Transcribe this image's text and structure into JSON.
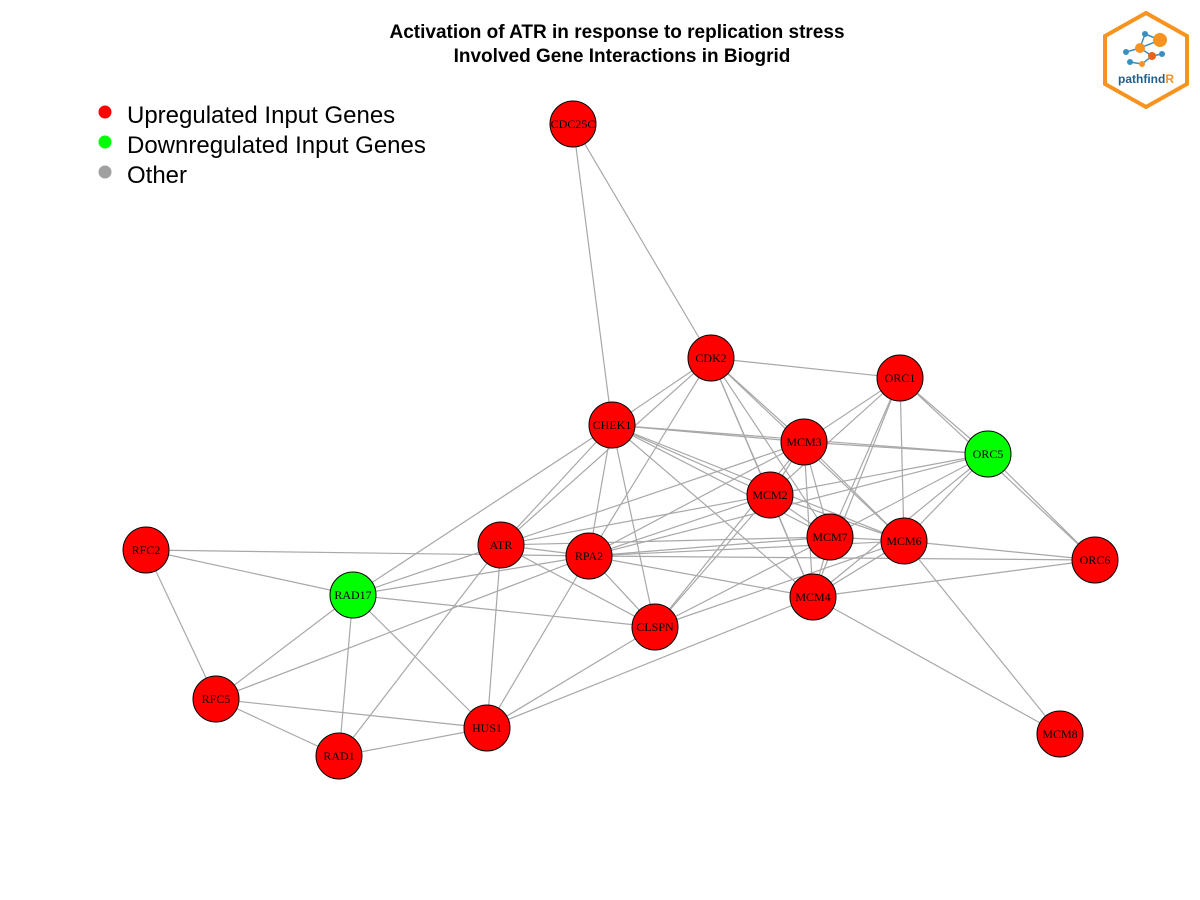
{
  "title": {
    "line1": "Activation of ATR in response to replication stress",
    "line2": "Involved Gene Interactions in Biogrid"
  },
  "legend": [
    {
      "label": "Upregulated Input Genes",
      "color": "#ff0000"
    },
    {
      "label": "Downregulated Input Genes",
      "color": "#00ff00"
    },
    {
      "label": "Other",
      "color": "#a0a0a0"
    }
  ],
  "logo": {
    "text_main": "pathfind",
    "text_accent": "R",
    "frame_color": "#f7931e",
    "text_color": "#1f5f8b"
  },
  "colors": {
    "up": "#ff0000",
    "down": "#00ff00",
    "edge": "#a8a8a8"
  },
  "network": {
    "nodes": [
      {
        "id": "CDC25C",
        "status": "up"
      },
      {
        "id": "CDK2",
        "status": "up"
      },
      {
        "id": "ORC1",
        "status": "up"
      },
      {
        "id": "CHEK1",
        "status": "up"
      },
      {
        "id": "MCM3",
        "status": "up"
      },
      {
        "id": "ORC5",
        "status": "down"
      },
      {
        "id": "MCM2",
        "status": "up"
      },
      {
        "id": "MCM7",
        "status": "up"
      },
      {
        "id": "MCM6",
        "status": "up"
      },
      {
        "id": "ATR",
        "status": "up"
      },
      {
        "id": "RPA2",
        "status": "up"
      },
      {
        "id": "RFC2",
        "status": "up"
      },
      {
        "id": "ORC6",
        "status": "up"
      },
      {
        "id": "MCM4",
        "status": "up"
      },
      {
        "id": "RAD17",
        "status": "down"
      },
      {
        "id": "CLSPN",
        "status": "up"
      },
      {
        "id": "RFC5",
        "status": "up"
      },
      {
        "id": "HUS1",
        "status": "up"
      },
      {
        "id": "RAD1",
        "status": "up"
      },
      {
        "id": "MCM8",
        "status": "up"
      }
    ],
    "edges": [
      [
        "CDC25C",
        "CDK2"
      ],
      [
        "CDC25C",
        "CHEK1"
      ],
      [
        "CDK2",
        "ORC1"
      ],
      [
        "CDK2",
        "CHEK1"
      ],
      [
        "CDK2",
        "MCM3"
      ],
      [
        "CDK2",
        "MCM2"
      ],
      [
        "CDK2",
        "MCM7"
      ],
      [
        "CDK2",
        "MCM6"
      ],
      [
        "CDK2",
        "MCM4"
      ],
      [
        "CDK2",
        "ATR"
      ],
      [
        "CDK2",
        "RPA2"
      ],
      [
        "ORC1",
        "MCM3"
      ],
      [
        "ORC1",
        "ORC5"
      ],
      [
        "ORC1",
        "MCM2"
      ],
      [
        "ORC1",
        "MCM7"
      ],
      [
        "ORC1",
        "MCM6"
      ],
      [
        "ORC1",
        "MCM4"
      ],
      [
        "ORC1",
        "ORC6"
      ],
      [
        "CHEK1",
        "MCM3"
      ],
      [
        "CHEK1",
        "ORC5"
      ],
      [
        "CHEK1",
        "MCM2"
      ],
      [
        "CHEK1",
        "MCM7"
      ],
      [
        "CHEK1",
        "MCM6"
      ],
      [
        "CHEK1",
        "MCM4"
      ],
      [
        "CHEK1",
        "ATR"
      ],
      [
        "CHEK1",
        "RPA2"
      ],
      [
        "CHEK1",
        "RAD17"
      ],
      [
        "CHEK1",
        "CLSPN"
      ],
      [
        "MCM3",
        "ORC5"
      ],
      [
        "MCM3",
        "MCM2"
      ],
      [
        "MCM3",
        "MCM7"
      ],
      [
        "MCM3",
        "MCM6"
      ],
      [
        "MCM3",
        "MCM4"
      ],
      [
        "MCM3",
        "RPA2"
      ],
      [
        "MCM3",
        "ATR"
      ],
      [
        "MCM3",
        "CLSPN"
      ],
      [
        "ORC5",
        "MCM2"
      ],
      [
        "ORC5",
        "MCM7"
      ],
      [
        "ORC5",
        "MCM6"
      ],
      [
        "ORC5",
        "ORC6"
      ],
      [
        "ORC5",
        "MCM4"
      ],
      [
        "ORC5",
        "RPA2"
      ],
      [
        "MCM2",
        "MCM7"
      ],
      [
        "MCM2",
        "MCM6"
      ],
      [
        "MCM2",
        "MCM4"
      ],
      [
        "MCM2",
        "RPA2"
      ],
      [
        "MCM2",
        "ATR"
      ],
      [
        "MCM2",
        "CLSPN"
      ],
      [
        "MCM7",
        "MCM6"
      ],
      [
        "MCM7",
        "MCM4"
      ],
      [
        "MCM7",
        "RPA2"
      ],
      [
        "MCM7",
        "ATR"
      ],
      [
        "MCM7",
        "CLSPN"
      ],
      [
        "MCM6",
        "MCM4"
      ],
      [
        "MCM6",
        "ORC6"
      ],
      [
        "MCM6",
        "MCM8"
      ],
      [
        "MCM6",
        "RPA2"
      ],
      [
        "MCM6",
        "CLSPN"
      ],
      [
        "MCM4",
        "ORC6"
      ],
      [
        "MCM4",
        "MCM8"
      ],
      [
        "MCM4",
        "RPA2"
      ],
      [
        "MCM4",
        "HUS1"
      ],
      [
        "ATR",
        "RPA2"
      ],
      [
        "ATR",
        "RAD17"
      ],
      [
        "ATR",
        "CLSPN"
      ],
      [
        "ATR",
        "HUS1"
      ],
      [
        "ATR",
        "RAD1"
      ],
      [
        "RPA2",
        "RAD17"
      ],
      [
        "RPA2",
        "CLSPN"
      ],
      [
        "RPA2",
        "HUS1"
      ],
      [
        "RPA2",
        "RFC5"
      ],
      [
        "RPA2",
        "ORC6"
      ],
      [
        "RFC2",
        "RAD17"
      ],
      [
        "RFC2",
        "RFC5"
      ],
      [
        "RFC2",
        "RPA2"
      ],
      [
        "RAD17",
        "CLSPN"
      ],
      [
        "RAD17",
        "RFC5"
      ],
      [
        "RAD17",
        "HUS1"
      ],
      [
        "RAD17",
        "RAD1"
      ],
      [
        "CLSPN",
        "HUS1"
      ],
      [
        "RFC5",
        "HUS1"
      ],
      [
        "RFC5",
        "RAD1"
      ],
      [
        "HUS1",
        "RAD1"
      ]
    ]
  }
}
